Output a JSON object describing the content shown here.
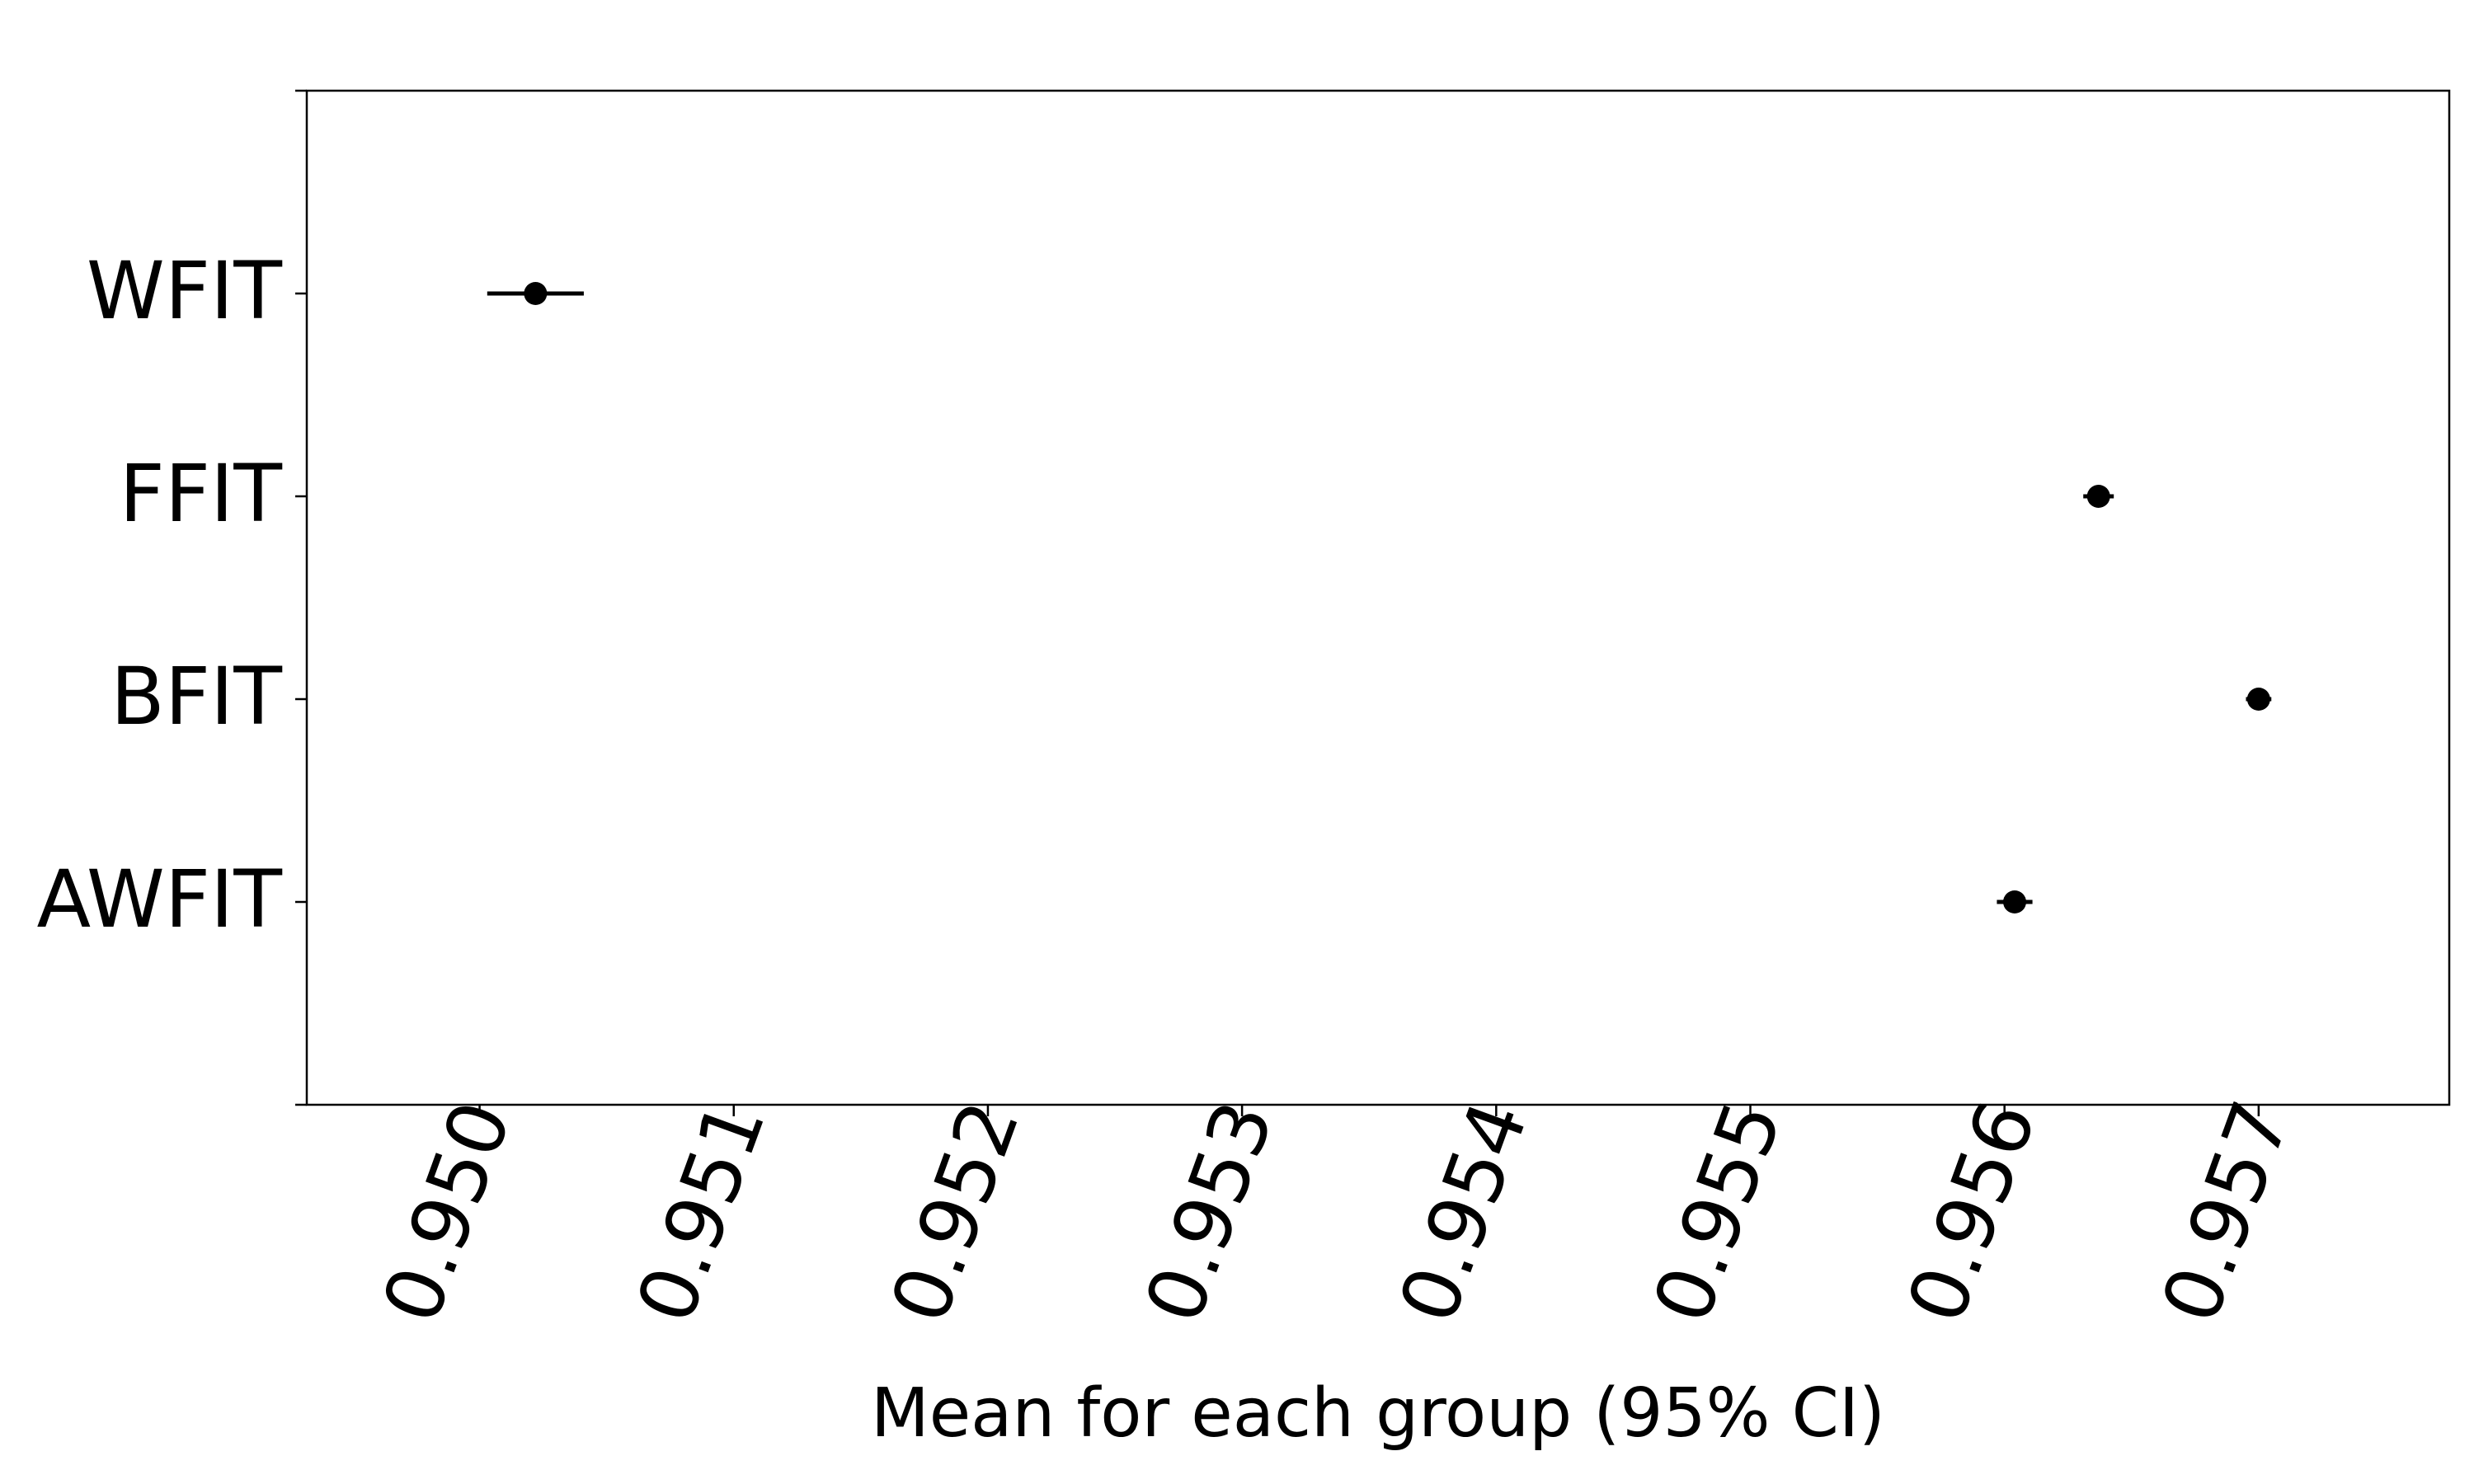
{
  "chart_data": {
    "type": "scatter",
    "subtype": "point-with-horizontal-errorbars",
    "title": "",
    "xlabel": "Mean for each group (95% CI)",
    "ylabel": "",
    "categories": [
      "WFIT",
      "FFIT",
      "BFIT",
      "AWFIT"
    ],
    "points": [
      {
        "label": "WFIT",
        "mean": 0.95022,
        "ci_low": 0.95003,
        "ci_high": 0.95041
      },
      {
        "label": "FFIT",
        "mean": 0.95637,
        "ci_low": 0.95631,
        "ci_high": 0.95643
      },
      {
        "label": "BFIT",
        "mean": 0.957,
        "ci_low": 0.95695,
        "ci_high": 0.95705
      },
      {
        "label": "AWFIT",
        "mean": 0.95604,
        "ci_low": 0.95597,
        "ci_high": 0.95611
      }
    ],
    "xlim": [
      0.94932,
      0.95775
    ],
    "xticks": [
      0.95,
      0.951,
      0.952,
      0.953,
      0.954,
      0.955,
      0.956,
      0.957
    ],
    "xtick_labels": [
      "0.950",
      "0.951",
      "0.952",
      "0.953",
      "0.954",
      "0.955",
      "0.956",
      "0.957"
    ],
    "xtick_rotation_deg": -70,
    "grid": false,
    "legend": "none",
    "colors": {
      "marker": "#000000",
      "axes": "#000000",
      "background": "#ffffff"
    }
  }
}
